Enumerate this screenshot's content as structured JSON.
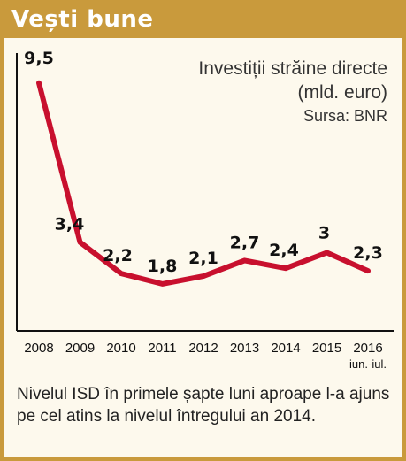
{
  "header": {
    "title": "Vești bune"
  },
  "chart_data": {
    "type": "line",
    "title": "Investiții străine directe",
    "unit": "(mld. euro)",
    "source": "Sursa: BNR",
    "categories": [
      "2008",
      "2009",
      "2010",
      "2011",
      "2012",
      "2013",
      "2014",
      "2015",
      "2016"
    ],
    "category_sublabels": [
      "",
      "",
      "",
      "",
      "",
      "",
      "",
      "",
      "iun.-iul."
    ],
    "values": [
      9.5,
      3.4,
      2.2,
      1.8,
      2.1,
      2.7,
      2.4,
      3,
      2.3
    ],
    "value_labels": [
      "9,5",
      "3,4",
      "2,2",
      "1,8",
      "2,1",
      "2,7",
      "2,4",
      "3",
      "2,3"
    ],
    "line_color": "#c8102e",
    "ylim": [
      0,
      11
    ],
    "grid": false
  },
  "caption": "Nivelul ISD în primele șapte luni aproape l-a ajuns pe cel atins la nivelul întregului an 2014."
}
